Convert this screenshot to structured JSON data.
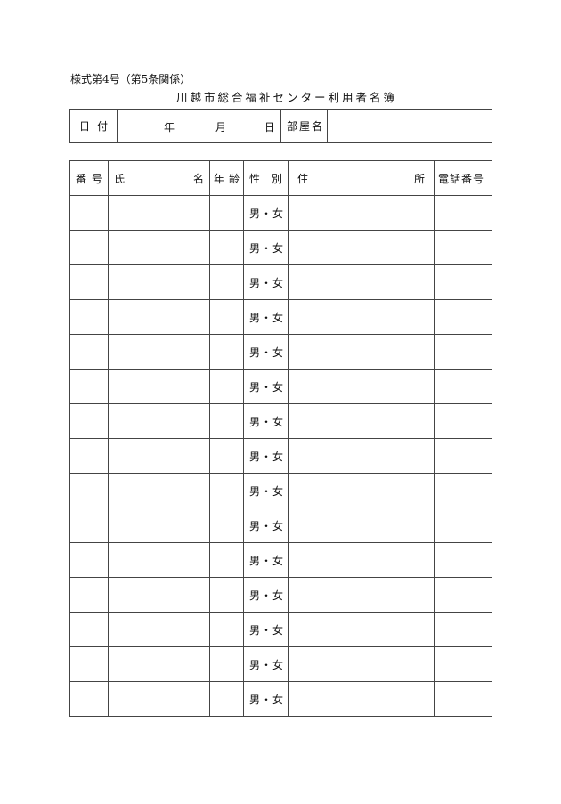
{
  "form_number": "様式第4号（第5条関係）",
  "title": "川越市総合福祉センター利用者名簿",
  "top_table": {
    "date_label": [
      "日",
      "付"
    ],
    "year": "年",
    "month": "月",
    "day": "日",
    "room_label": "部屋名",
    "room_value": ""
  },
  "main_table": {
    "headers": {
      "number": [
        "番",
        "号"
      ],
      "name": [
        "氏",
        "名"
      ],
      "age": [
        "年",
        "齢"
      ],
      "sex": [
        "性",
        "別"
      ],
      "address": [
        "住",
        "所"
      ],
      "phone": "電話番号"
    },
    "sex_option": "男・女",
    "rows": [
      {
        "sex": "男・女"
      },
      {
        "sex": "男・女"
      },
      {
        "sex": "男・女"
      },
      {
        "sex": "男・女"
      },
      {
        "sex": "男・女"
      },
      {
        "sex": "男・女"
      },
      {
        "sex": "男・女"
      },
      {
        "sex": "男・女"
      },
      {
        "sex": "男・女"
      },
      {
        "sex": "男・女"
      },
      {
        "sex": "男・女"
      },
      {
        "sex": "男・女"
      },
      {
        "sex": "男・女"
      },
      {
        "sex": "男・女"
      },
      {
        "sex": "男・女"
      }
    ]
  }
}
